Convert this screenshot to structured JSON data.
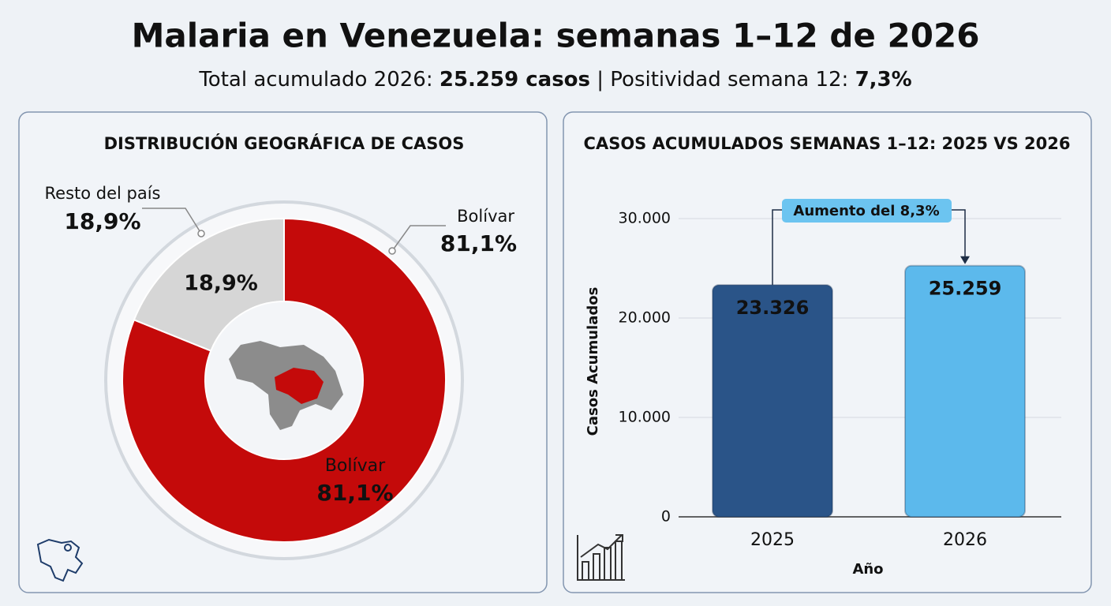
{
  "header": {
    "title": "Malaria en Venezuela: semanas 1–12 de 2026",
    "subtitle": [
      {
        "text": "Total acumulado 2026: ",
        "bold": false
      },
      {
        "text": "25.259 casos",
        "bold": true
      },
      {
        "text": " | Positividad semana 12: ",
        "bold": false
      },
      {
        "text": "7,3%",
        "bold": true
      }
    ]
  },
  "chart_data": [
    {
      "type": "pie",
      "title": "DISTRIBUCIÓN GEOGRÁFICA DE CASOS",
      "categories": [
        "Bolívar",
        "Resto del país"
      ],
      "values": [
        81.1,
        18.9
      ],
      "value_labels": [
        "81,1%",
        "18,9%"
      ],
      "colors": [
        "#c40a0a",
        "#d6d6d6"
      ]
    },
    {
      "type": "bar",
      "title": "CASOS ACUMULADOS SEMANAS 1–12: 2025 VS 2026",
      "categories": [
        "2025",
        "2026"
      ],
      "values": [
        23326,
        25259
      ],
      "value_labels": [
        "23.326",
        "25.259"
      ],
      "colors": [
        "#2a5488",
        "#5cb9ec"
      ],
      "ylabel": "Casos Acumulados",
      "xlabel": "Año",
      "ylim": [
        0,
        30000
      ],
      "yticks": [
        0,
        {
          "value": 10000,
          "label": "10.000"
        },
        {
          "value": 20000,
          "label": "20.000"
        },
        {
          "value": 30000,
          "label": "30.000"
        }
      ],
      "grid": true,
      "annotation": "Aumento del 8,3%"
    }
  ]
}
